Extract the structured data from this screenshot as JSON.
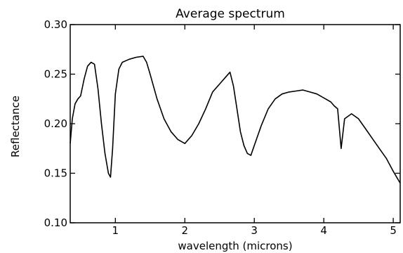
{
  "chart_data": {
    "type": "line",
    "title": "Average spectrum",
    "xlabel": "wavelength (microns)",
    "ylabel": "Reflectance",
    "xlim": [
      0.35,
      5.1
    ],
    "ylim": [
      0.1,
      0.3
    ],
    "x_ticks": [
      1,
      2,
      3,
      4,
      5
    ],
    "x_tick_labels": [
      "1",
      "2",
      "3",
      "4",
      "5"
    ],
    "y_ticks": [
      0.1,
      0.15,
      0.2,
      0.25,
      0.3
    ],
    "y_tick_labels": [
      "0.10",
      "0.15",
      "0.20",
      "0.25",
      "0.30"
    ],
    "grid": false,
    "line_color": "#000000",
    "series": [
      {
        "x": [
          0.35,
          0.38,
          0.42,
          0.46,
          0.5,
          0.55,
          0.6,
          0.65,
          0.7,
          0.75,
          0.8,
          0.85,
          0.9,
          0.93,
          0.96,
          1.0,
          1.05,
          1.1,
          1.2,
          1.3,
          1.4,
          1.45,
          1.5,
          1.6,
          1.7,
          1.8,
          1.9,
          2.0,
          2.1,
          2.2,
          2.3,
          2.4,
          2.5,
          2.6,
          2.65,
          2.7,
          2.75,
          2.8,
          2.85,
          2.9,
          2.95,
          3.0,
          3.1,
          3.2,
          3.3,
          3.4,
          3.5,
          3.6,
          3.7,
          3.8,
          3.9,
          4.0,
          4.1,
          4.15,
          4.2,
          4.25,
          4.3,
          4.4,
          4.5,
          4.6,
          4.7,
          4.8,
          4.9,
          5.0,
          5.1
        ],
        "y": [
          0.18,
          0.205,
          0.22,
          0.225,
          0.228,
          0.245,
          0.258,
          0.262,
          0.26,
          0.235,
          0.2,
          0.17,
          0.15,
          0.146,
          0.175,
          0.23,
          0.255,
          0.262,
          0.265,
          0.267,
          0.268,
          0.262,
          0.25,
          0.225,
          0.205,
          0.192,
          0.184,
          0.18,
          0.188,
          0.2,
          0.215,
          0.232,
          0.24,
          0.248,
          0.252,
          0.238,
          0.215,
          0.192,
          0.178,
          0.17,
          0.168,
          0.178,
          0.198,
          0.215,
          0.225,
          0.23,
          0.232,
          0.233,
          0.234,
          0.232,
          0.23,
          0.226,
          0.222,
          0.218,
          0.215,
          0.175,
          0.205,
          0.21,
          0.205,
          0.195,
          0.185,
          0.175,
          0.165,
          0.152,
          0.14
        ]
      }
    ]
  }
}
